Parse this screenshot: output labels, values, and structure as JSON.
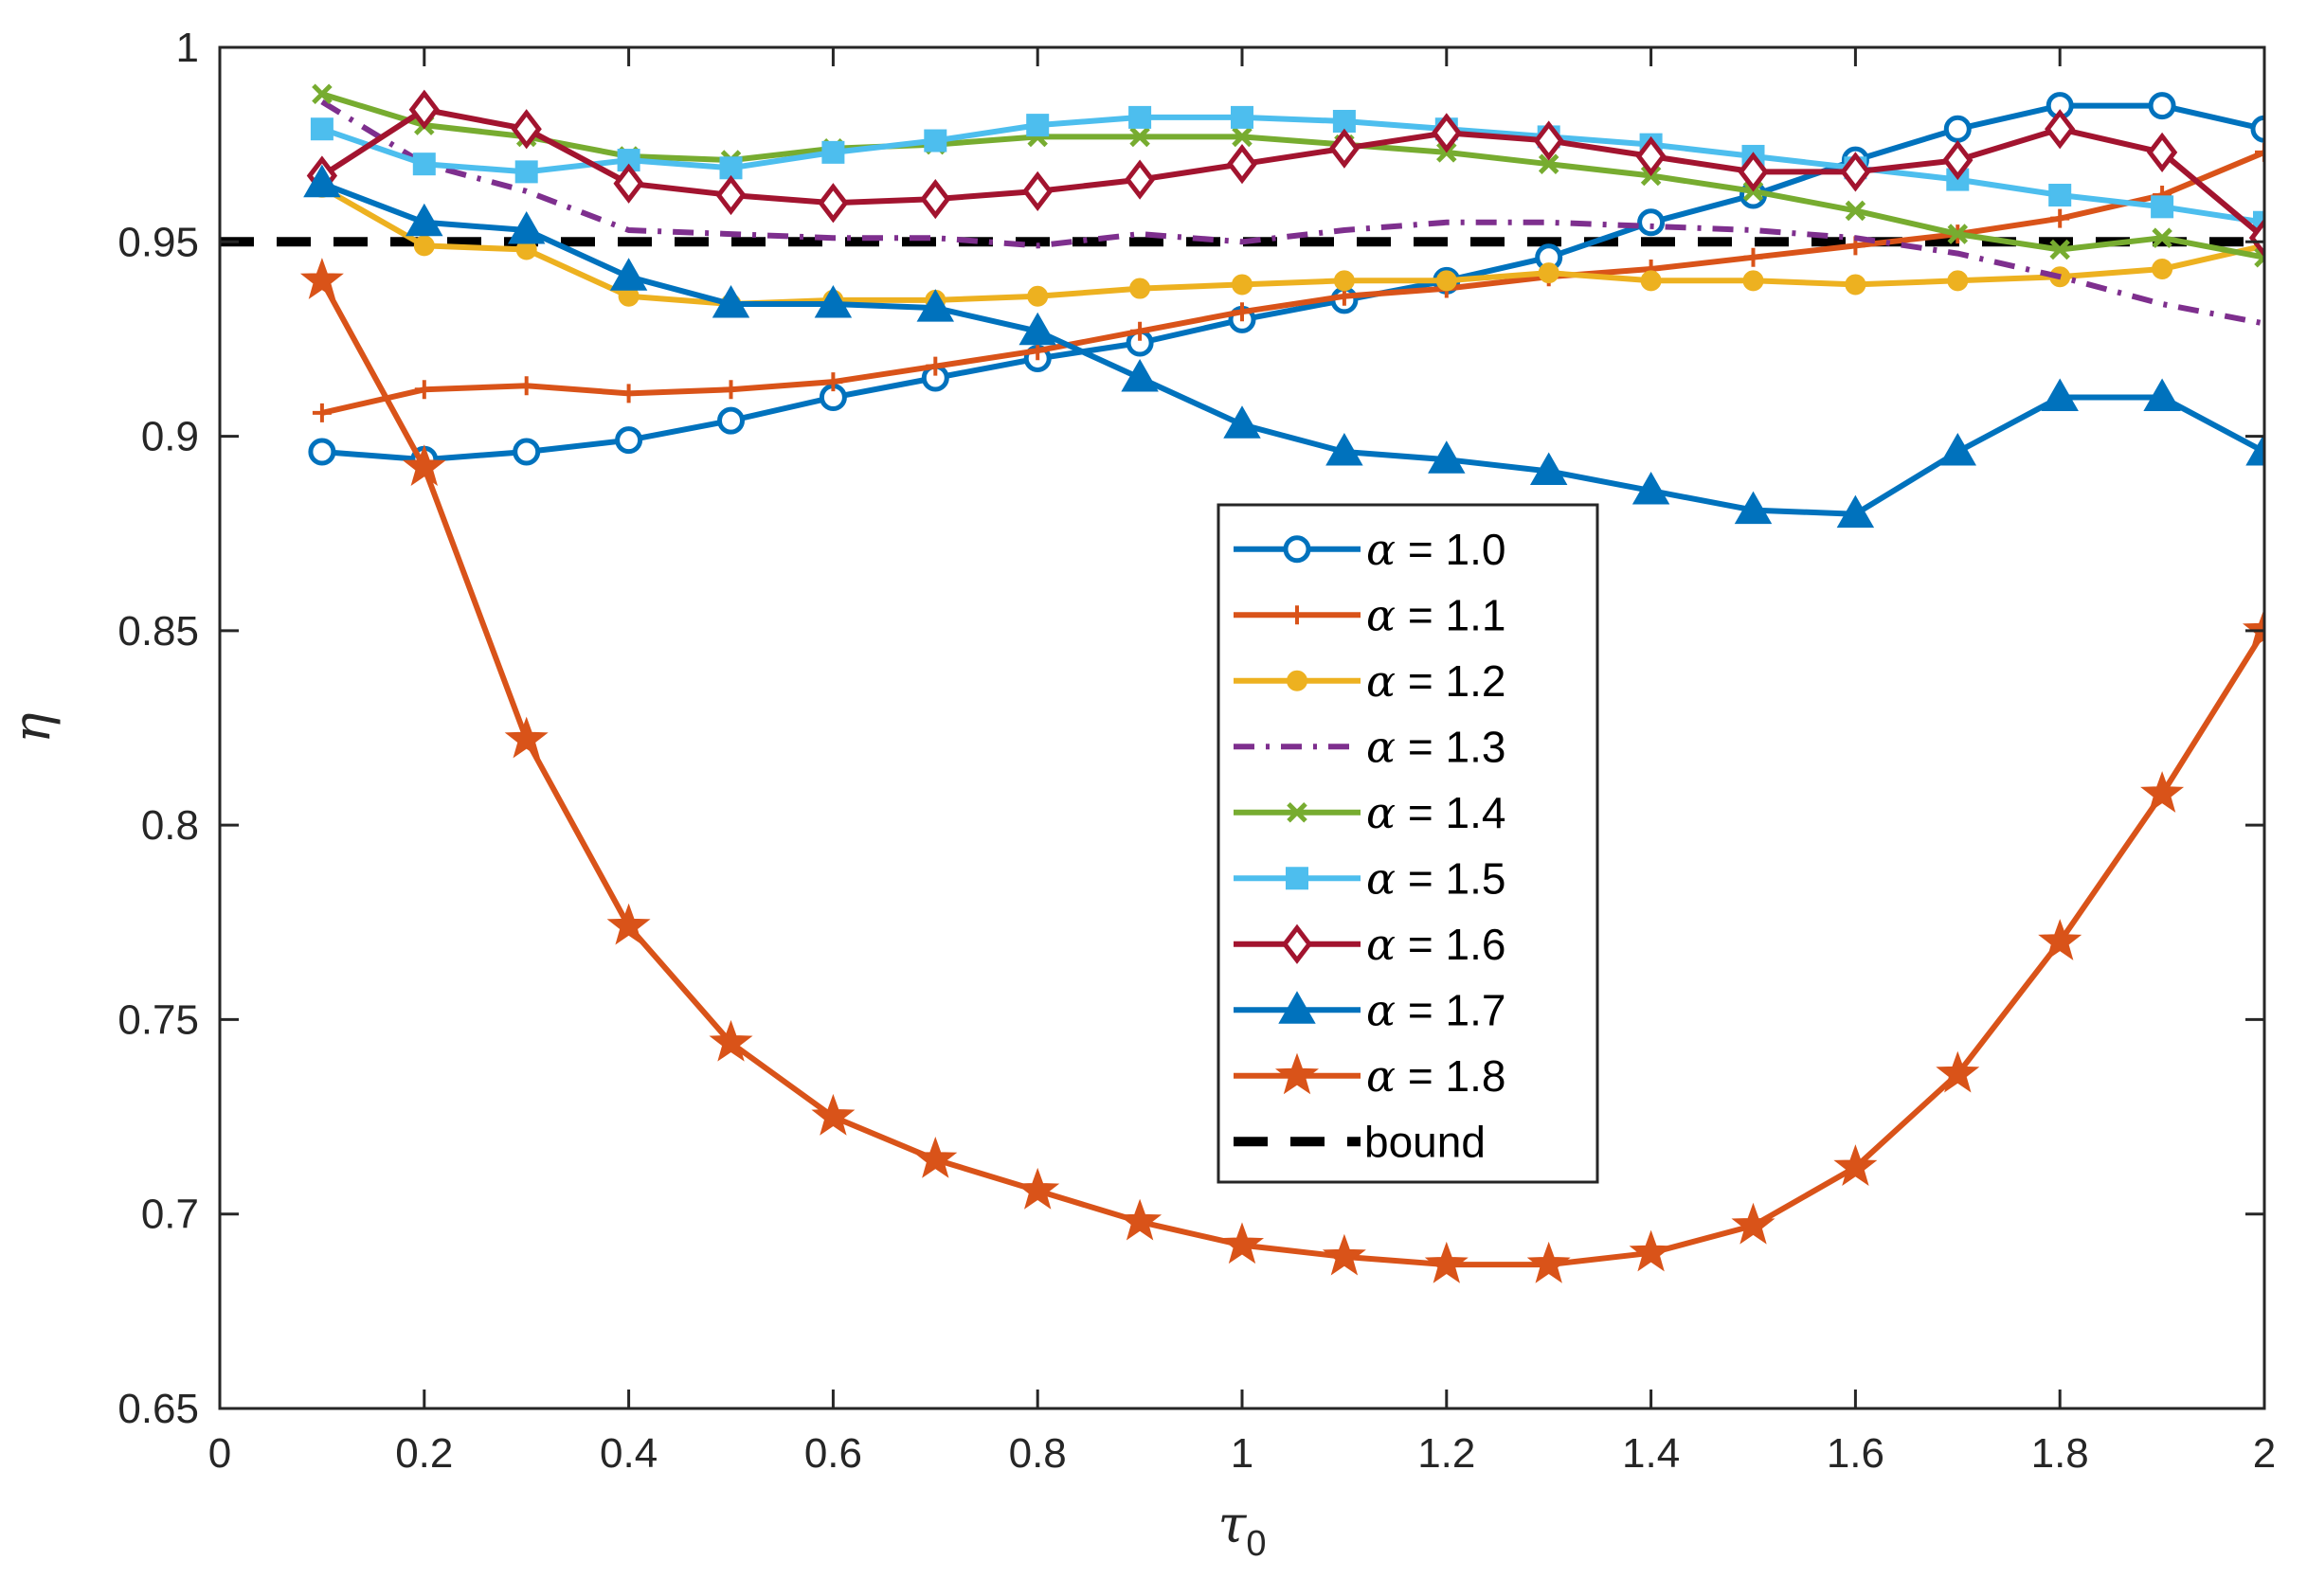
{
  "chart_data": {
    "type": "line",
    "title": "",
    "xlabel": "τ",
    "xlabel_subscript": "0",
    "ylabel": "η",
    "xlim": [
      0,
      2
    ],
    "ylim": [
      0.65,
      1.0
    ],
    "xticks": [
      0,
      0.2,
      0.4,
      0.6,
      0.8,
      1.0,
      1.2,
      1.4,
      1.6,
      1.8,
      2.0
    ],
    "xtick_labels": [
      "0",
      "0.2",
      "0.4",
      "0.6",
      "0.8",
      "1",
      "1.2",
      "1.4",
      "1.6",
      "1.8",
      "2"
    ],
    "yticks": [
      0.65,
      0.7,
      0.75,
      0.8,
      0.85,
      0.9,
      0.95,
      1.0
    ],
    "ytick_labels": [
      "0.65",
      "0.7",
      "0.75",
      "0.8",
      "0.85",
      "0.9",
      "0.95",
      "1"
    ],
    "grid": false,
    "legend_position": "center-right",
    "x": [
      0.1,
      0.2,
      0.3,
      0.4,
      0.5,
      0.6,
      0.7,
      0.8,
      0.9,
      1.0,
      1.1,
      1.2,
      1.3,
      1.4,
      1.5,
      1.6,
      1.7,
      1.8,
      1.9,
      2.0
    ],
    "series": [
      {
        "name": "α = 1.0",
        "greek": "α",
        "label_rest": " = 1.0",
        "color": "#0072BD",
        "marker": "circle",
        "dash": "solid",
        "values": [
          0.896,
          0.894,
          0.896,
          0.899,
          0.904,
          0.91,
          0.915,
          0.92,
          0.924,
          0.93,
          0.935,
          0.94,
          0.946,
          0.955,
          0.962,
          0.971,
          0.979,
          0.985,
          0.985,
          0.979
        ]
      },
      {
        "name": "α = 1.1",
        "greek": "α",
        "label_rest": " = 1.1",
        "color": "#D95319",
        "marker": "plus",
        "dash": "solid",
        "values": [
          0.906,
          0.912,
          0.913,
          0.911,
          0.912,
          0.914,
          0.918,
          0.922,
          0.927,
          0.932,
          0.936,
          0.938,
          0.941,
          0.943,
          0.946,
          0.949,
          0.952,
          0.956,
          0.962,
          0.973
        ]
      },
      {
        "name": "α = 1.2",
        "greek": "α",
        "label_rest": " = 1.2",
        "color": "#EDB120",
        "marker": "dot",
        "dash": "solid",
        "values": [
          0.964,
          0.949,
          0.948,
          0.936,
          0.934,
          0.935,
          0.935,
          0.936,
          0.938,
          0.939,
          0.94,
          0.94,
          0.942,
          0.94,
          0.94,
          0.939,
          0.94,
          0.941,
          0.943,
          0.949
        ]
      },
      {
        "name": "α = 1.3",
        "greek": "α",
        "label_rest": " = 1.3",
        "color": "#7E2F8E",
        "marker": "none",
        "dash": "dashdot",
        "values": [
          0.986,
          0.97,
          0.963,
          0.953,
          0.952,
          0.951,
          0.951,
          0.949,
          0.952,
          0.95,
          0.953,
          0.955,
          0.955,
          0.954,
          0.953,
          0.951,
          0.947,
          0.941,
          0.934,
          0.929
        ]
      },
      {
        "name": "α = 1.4",
        "greek": "α",
        "label_rest": " = 1.4",
        "color": "#77AC30",
        "marker": "x",
        "dash": "solid",
        "values": [
          0.988,
          0.98,
          0.977,
          0.972,
          0.971,
          0.974,
          0.975,
          0.977,
          0.977,
          0.977,
          0.975,
          0.973,
          0.97,
          0.967,
          0.963,
          0.958,
          0.952,
          0.948,
          0.951,
          0.946
        ]
      },
      {
        "name": "α = 1.5",
        "greek": "α",
        "label_rest": " = 1.5",
        "color": "#4DBEEE",
        "marker": "square",
        "dash": "solid",
        "values": [
          0.979,
          0.97,
          0.968,
          0.971,
          0.969,
          0.973,
          0.976,
          0.98,
          0.982,
          0.982,
          0.981,
          0.979,
          0.977,
          0.975,
          0.972,
          0.969,
          0.966,
          0.962,
          0.959,
          0.955
        ]
      },
      {
        "name": "α = 1.6",
        "greek": "α",
        "label_rest": " = 1.6",
        "color": "#A2142F",
        "marker": "diamond",
        "dash": "solid",
        "values": [
          0.967,
          0.984,
          0.979,
          0.965,
          0.962,
          0.96,
          0.961,
          0.963,
          0.966,
          0.97,
          0.974,
          0.978,
          0.976,
          0.972,
          0.968,
          0.968,
          0.971,
          0.979,
          0.973,
          0.951
        ]
      },
      {
        "name": "α = 1.7",
        "greek": "α",
        "label_rest": " = 1.7",
        "color": "#0072BD",
        "marker": "triangle",
        "dash": "solid",
        "values": [
          0.965,
          0.955,
          0.953,
          0.941,
          0.934,
          0.934,
          0.933,
          0.927,
          0.915,
          0.903,
          0.896,
          0.894,
          0.891,
          0.886,
          0.881,
          0.88,
          0.896,
          0.91,
          0.91,
          0.896
        ]
      },
      {
        "name": "α = 1.8",
        "greek": "α",
        "label_rest": " = 1.8",
        "color": "#D95319",
        "marker": "star",
        "dash": "solid",
        "values": [
          0.94,
          0.892,
          0.822,
          0.774,
          0.744,
          0.725,
          0.714,
          0.706,
          0.698,
          0.692,
          0.689,
          0.687,
          0.687,
          0.69,
          0.697,
          0.712,
          0.736,
          0.77,
          0.808,
          0.85
        ]
      }
    ],
    "reference_line": {
      "name": "bound",
      "label": "bound",
      "value": 0.95,
      "color": "#000000",
      "dash": "dashed"
    }
  }
}
